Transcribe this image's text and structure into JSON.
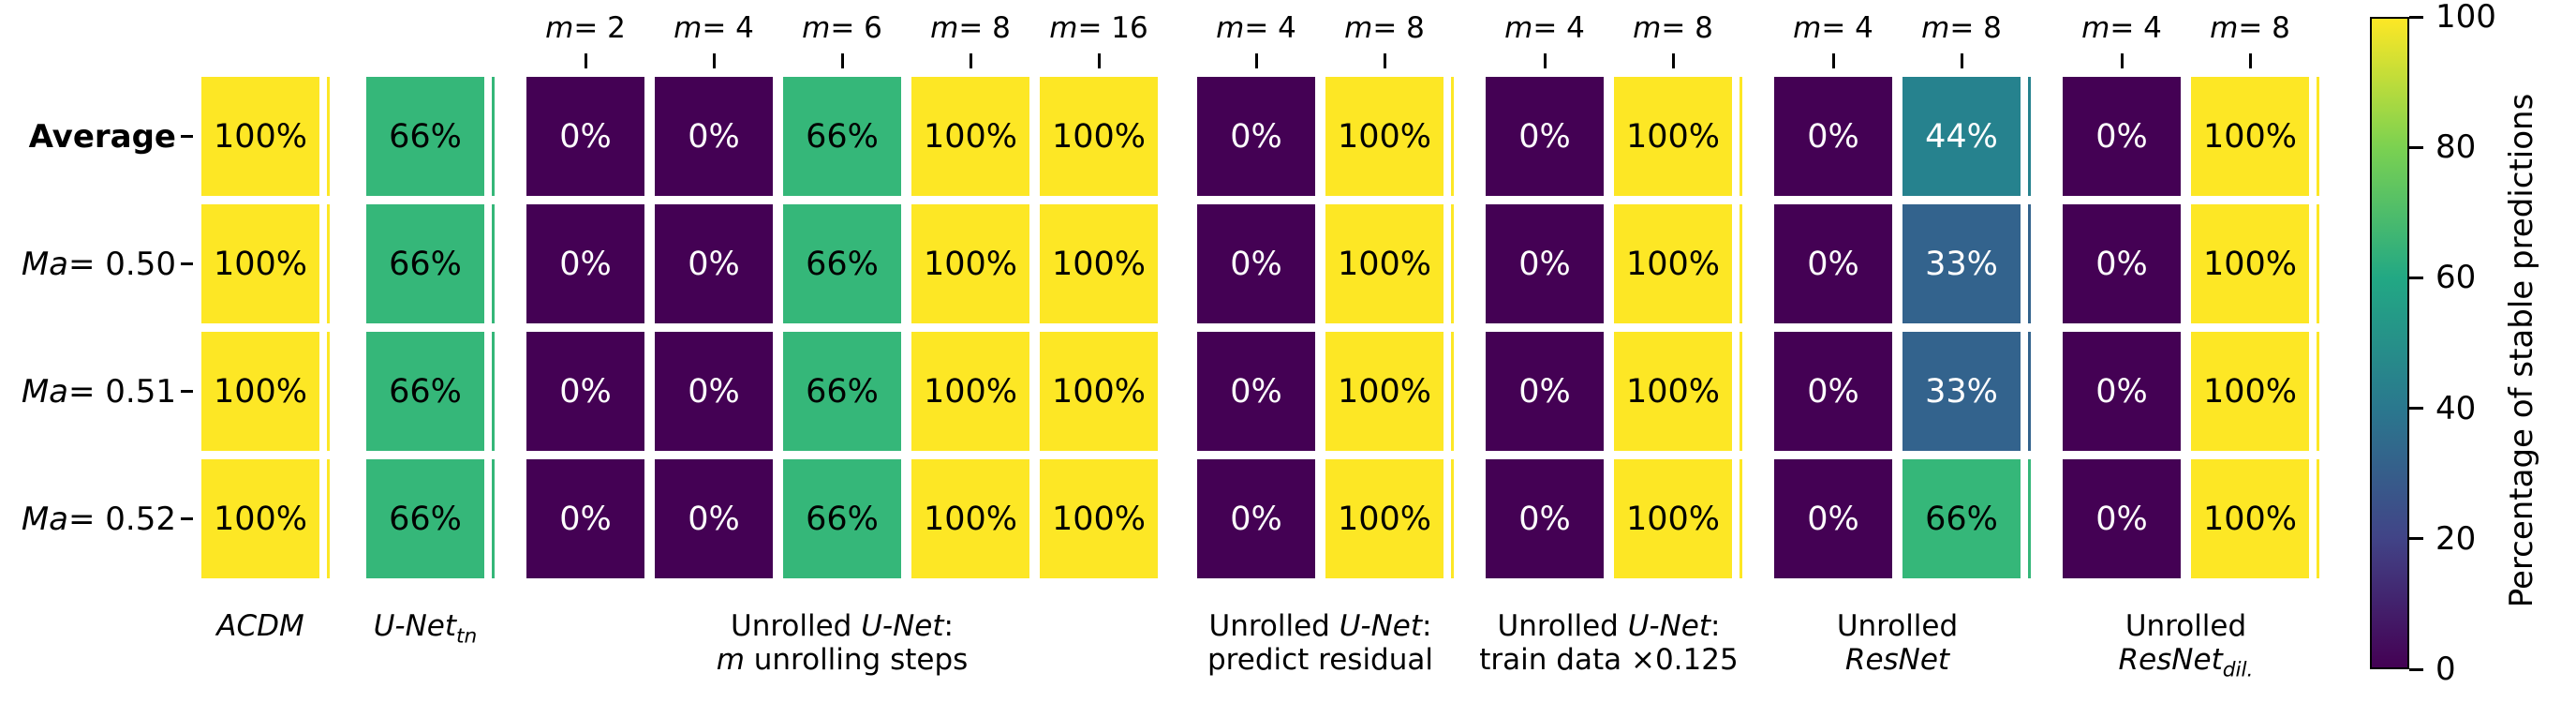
{
  "chart_data": {
    "type": "heatmap",
    "title": "",
    "value_unit": "%",
    "rows": [
      {
        "name": "average",
        "segs": [
          {
            "t": "Average",
            "b": true
          }
        ]
      },
      {
        "name": "ma-0.50",
        "segs": [
          {
            "t": "Ma",
            "i": true
          },
          {
            "t": " = 0.50"
          }
        ]
      },
      {
        "name": "ma-0.51",
        "segs": [
          {
            "t": "Ma",
            "i": true
          },
          {
            "t": " = 0.51"
          }
        ]
      },
      {
        "name": "ma-0.52",
        "segs": [
          {
            "t": "Ma",
            "i": true
          },
          {
            "t": " = 0.52"
          }
        ]
      }
    ],
    "groups": [
      {
        "name": "acdm",
        "edge_strip": true,
        "label": [
          [
            {
              "t": "ACDM",
              "i": true
            }
          ]
        ],
        "columns": [
          {
            "header": null,
            "values": [
              100,
              100,
              100,
              100
            ]
          }
        ]
      },
      {
        "name": "unet-tn",
        "edge_strip": true,
        "label": [
          [
            {
              "t": "U-Net",
              "i": true
            },
            {
              "t": "tn",
              "i": true,
              "sub": true
            }
          ]
        ],
        "columns": [
          {
            "header": null,
            "values": [
              66,
              66,
              66,
              66
            ]
          }
        ]
      },
      {
        "name": "unrolled-unet-steps",
        "edge_strip": false,
        "label": [
          [
            {
              "t": "Unrolled "
            },
            {
              "t": "U-Net",
              "i": true
            },
            {
              "t": ":"
            }
          ],
          [
            {
              "t": "m",
              "i": true
            },
            {
              "t": " unrolling steps"
            }
          ]
        ],
        "columns": [
          {
            "header": [
              {
                "t": "m",
                "i": true
              },
              {
                "t": " = 2"
              }
            ],
            "values": [
              0,
              0,
              0,
              0
            ]
          },
          {
            "header": [
              {
                "t": "m",
                "i": true
              },
              {
                "t": " = 4"
              }
            ],
            "values": [
              0,
              0,
              0,
              0
            ]
          },
          {
            "header": [
              {
                "t": "m",
                "i": true
              },
              {
                "t": " = 6"
              }
            ],
            "values": [
              66,
              66,
              66,
              66
            ]
          },
          {
            "header": [
              {
                "t": "m",
                "i": true
              },
              {
                "t": " = 8"
              }
            ],
            "values": [
              100,
              100,
              100,
              100
            ]
          },
          {
            "header": [
              {
                "t": "m",
                "i": true
              },
              {
                "t": " = 16"
              }
            ],
            "values": [
              100,
              100,
              100,
              100
            ]
          }
        ]
      },
      {
        "name": "unrolled-unet-residual",
        "edge_strip": true,
        "label": [
          [
            {
              "t": "Unrolled "
            },
            {
              "t": "U-Net",
              "i": true
            },
            {
              "t": ":"
            }
          ],
          [
            {
              "t": "predict residual"
            }
          ]
        ],
        "columns": [
          {
            "header": [
              {
                "t": "m",
                "i": true
              },
              {
                "t": " = 4"
              }
            ],
            "values": [
              0,
              0,
              0,
              0
            ]
          },
          {
            "header": [
              {
                "t": "m",
                "i": true
              },
              {
                "t": " = 8"
              }
            ],
            "values": [
              100,
              100,
              100,
              100
            ]
          }
        ]
      },
      {
        "name": "unrolled-unet-traindata",
        "edge_strip": true,
        "label": [
          [
            {
              "t": "Unrolled "
            },
            {
              "t": "U-Net",
              "i": true
            },
            {
              "t": ":"
            }
          ],
          [
            {
              "t": "train data ×0.125"
            }
          ]
        ],
        "columns": [
          {
            "header": [
              {
                "t": "m",
                "i": true
              },
              {
                "t": " = 4"
              }
            ],
            "values": [
              0,
              0,
              0,
              0
            ]
          },
          {
            "header": [
              {
                "t": "m",
                "i": true
              },
              {
                "t": " = 8"
              }
            ],
            "values": [
              100,
              100,
              100,
              100
            ]
          }
        ]
      },
      {
        "name": "unrolled-resnet",
        "edge_strip": true,
        "label": [
          [
            {
              "t": "Unrolled"
            }
          ],
          [
            {
              "t": "ResNet",
              "i": true
            }
          ]
        ],
        "columns": [
          {
            "header": [
              {
                "t": "m",
                "i": true
              },
              {
                "t": " = 4"
              }
            ],
            "values": [
              0,
              0,
              0,
              0
            ]
          },
          {
            "header": [
              {
                "t": "m",
                "i": true
              },
              {
                "t": " = 8"
              }
            ],
            "values": [
              44,
              33,
              33,
              66
            ]
          }
        ]
      },
      {
        "name": "unrolled-resnet-dil",
        "edge_strip": true,
        "label": [
          [
            {
              "t": "Unrolled"
            }
          ],
          [
            {
              "t": "ResNet",
              "i": true
            },
            {
              "t": "dil.",
              "i": true,
              "sub": true
            }
          ]
        ],
        "columns": [
          {
            "header": [
              {
                "t": "m",
                "i": true
              },
              {
                "t": " = 4"
              }
            ],
            "values": [
              0,
              0,
              0,
              0
            ]
          },
          {
            "header": [
              {
                "t": "m",
                "i": true
              },
              {
                "t": " = 8"
              }
            ],
            "values": [
              100,
              100,
              100,
              100
            ]
          }
        ]
      }
    ],
    "colorbar": {
      "label": "Percentage of stable predictions",
      "ticks": [
        0,
        20,
        40,
        60,
        80,
        100
      ],
      "min": 0,
      "max": 100
    },
    "colormap": {
      "name": "viridis",
      "value_colors": {
        "0": "#440154",
        "33": "#33638d",
        "44": "#26828e",
        "66": "#35b779",
        "100": "#fde725"
      },
      "gradient": [
        [
          "0",
          "#440154"
        ],
        [
          "20",
          "#414487"
        ],
        [
          "40",
          "#2a788e"
        ],
        [
          "60",
          "#22a884"
        ],
        [
          "80",
          "#7ad151"
        ],
        [
          "100",
          "#fde725"
        ]
      ],
      "dark_text_threshold": 60,
      "text_on_dark": "#ffffff",
      "text_on_light": "#000000"
    }
  }
}
